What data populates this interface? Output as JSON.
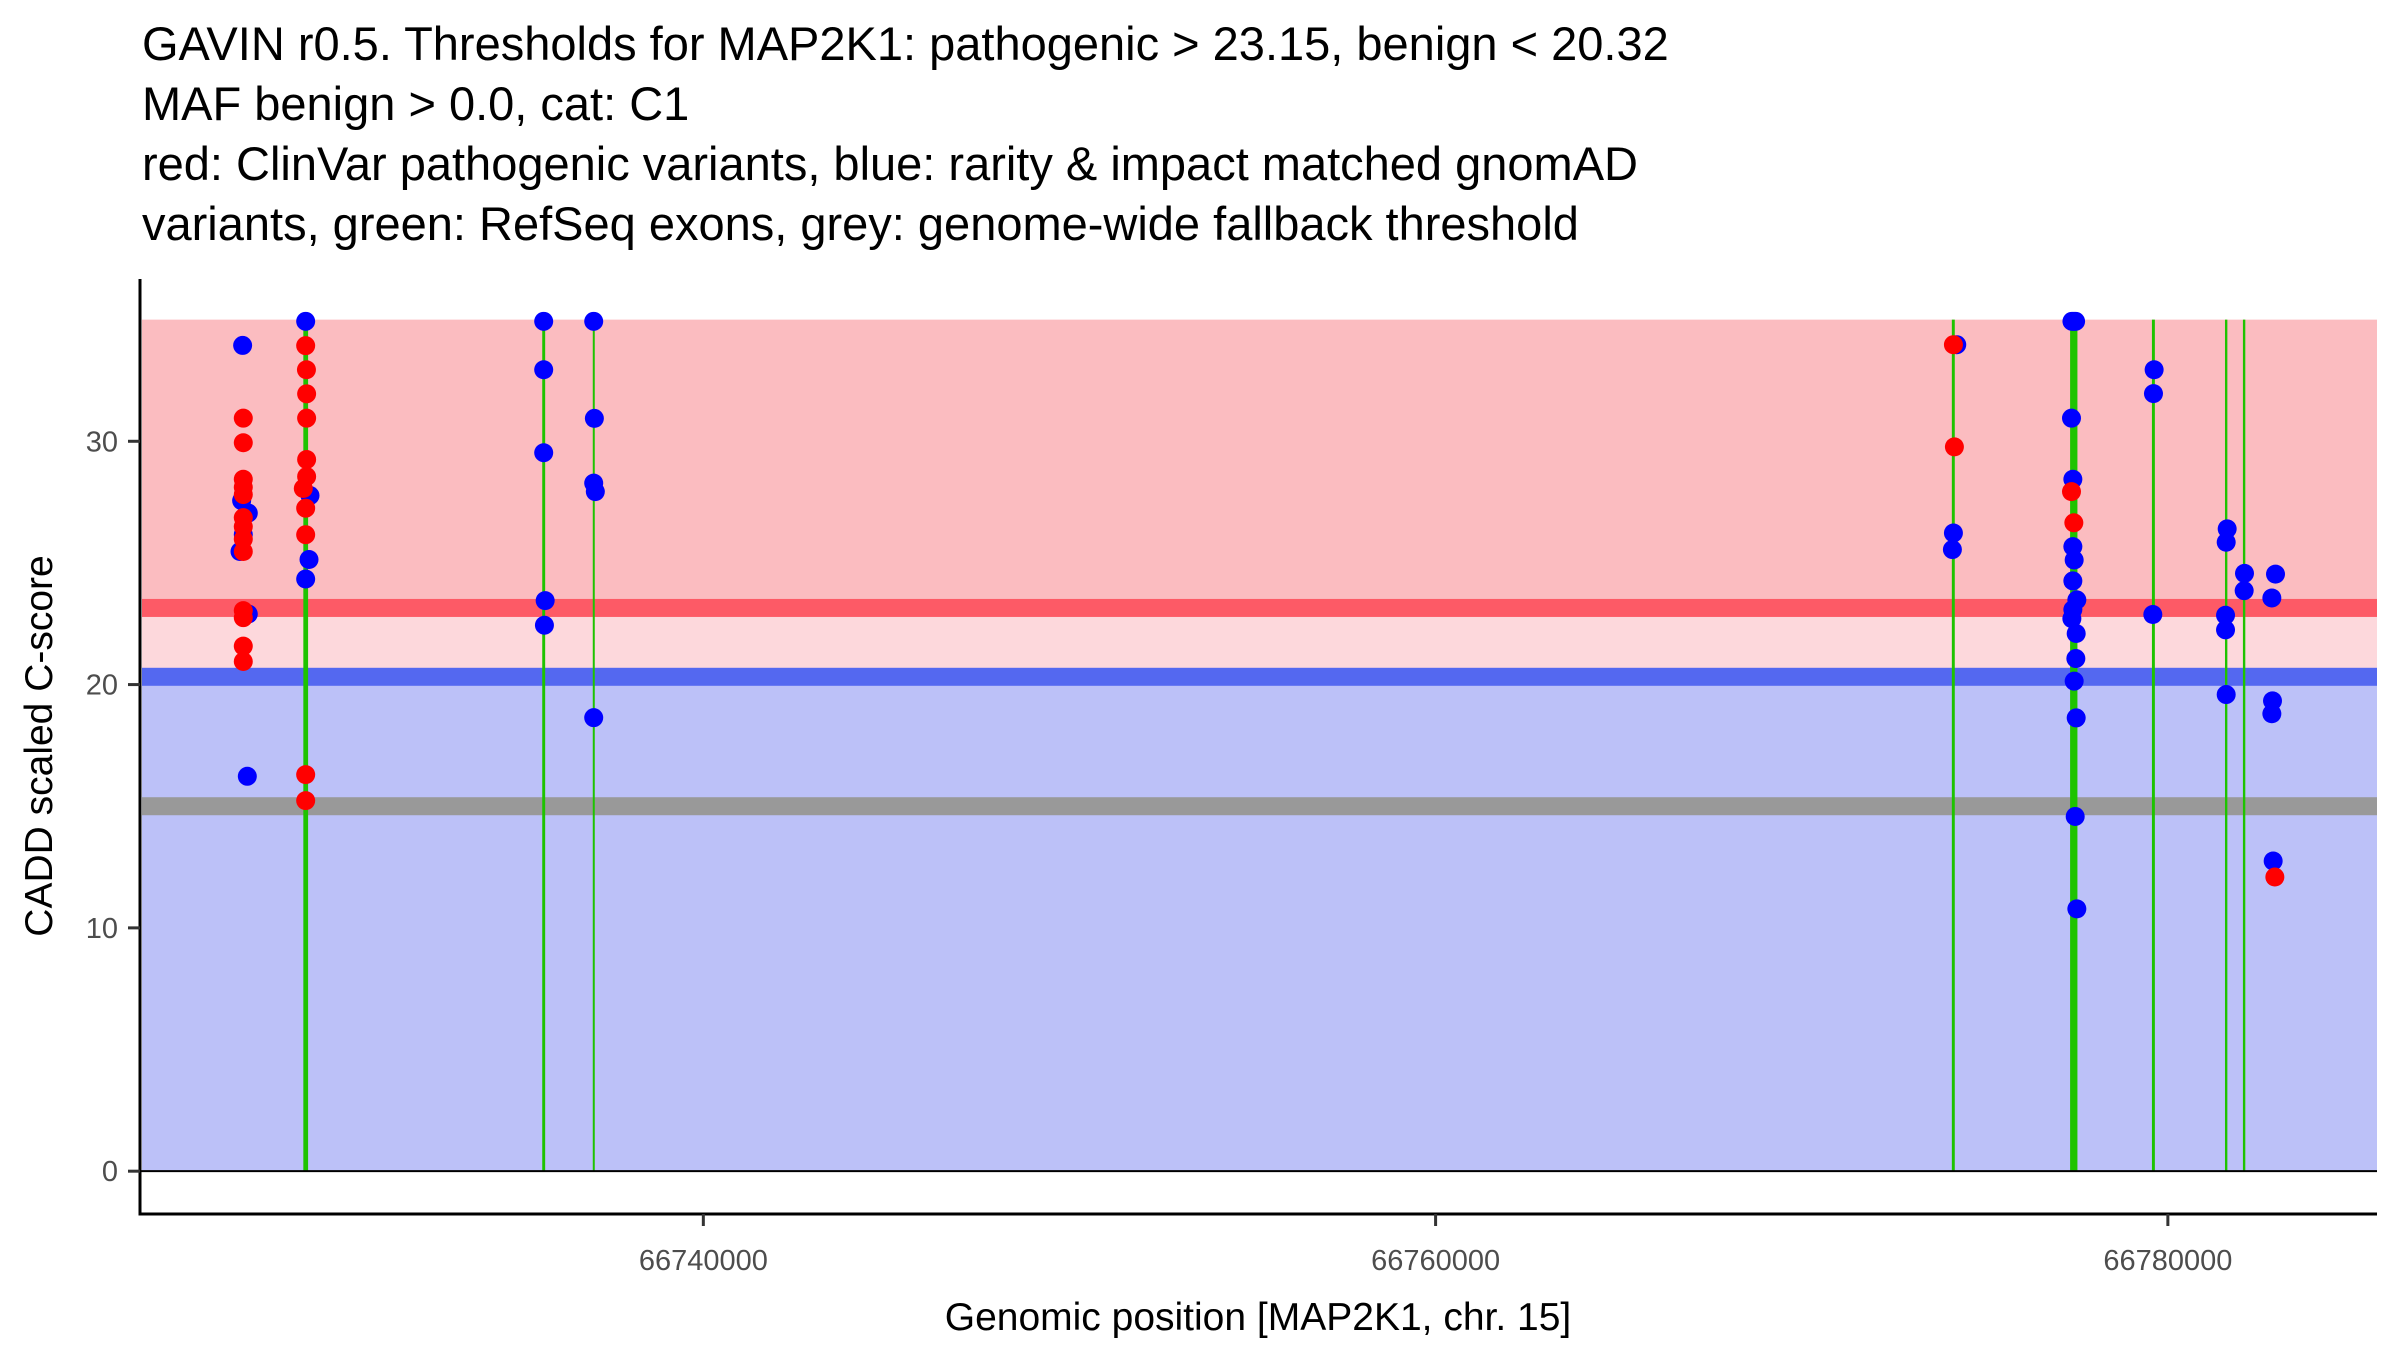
{
  "chart_data": {
    "type": "scatter",
    "title_lines": [
      "GAVIN r0.5. Thresholds for MAP2K1: pathogenic > 23.15, benign < 20.32",
      "MAF benign > 0.0, cat: C1",
      "red: ClinVar pathogenic variants, blue: rarity & impact matched gnomAD",
      "variants, green: RefSeq exons, grey: genome-wide fallback threshold"
    ],
    "xlabel": "Genomic position [MAP2K1, chr. 15]",
    "ylabel": "CADD scaled C-score",
    "xlim": [
      66724614,
      66785712
    ],
    "ylim": [
      -1.76,
      36.67
    ],
    "x_ticks": [
      66740000,
      66760000,
      66780000
    ],
    "x_tick_labels": [
      "66740000",
      "66760000",
      "66780000"
    ],
    "y_ticks": [
      0,
      10,
      20,
      30
    ],
    "y_tick_labels": [
      "0",
      "10",
      "20",
      "30"
    ],
    "grid": false,
    "thresholds": {
      "pathogenic": 23.15,
      "benign": 20.32,
      "fallback": 15,
      "max_score": 35,
      "band_half_width": 0.37
    },
    "colors": {
      "pathogenic_region": "#fbbcc0",
      "pathogenic_line": "#fd5a66",
      "gap_region": "#fdd8dc",
      "benign_line": "#5468f0",
      "benign_region": "#bcc1f8",
      "fallback_line": "#999999",
      "exon": "#1ec300",
      "pathogenic_point": "#ff0000",
      "benign_point": "#0000ff",
      "axis": "#000000"
    },
    "exons": [
      [
        66729075,
        66729205
      ],
      [
        66735600,
        66735680
      ],
      [
        66736995,
        66737020
      ],
      [
        66774100,
        66774180
      ],
      [
        66777330,
        66777530
      ],
      [
        66779565,
        66779645
      ],
      [
        66781560,
        66781625
      ],
      [
        66782050,
        66782115
      ]
    ],
    "series": [
      {
        "name": "gnomAD matched variants",
        "color_key": "benign_point",
        "points": [
          [
            66727417,
            33.94
          ],
          [
            66727390,
            27.56
          ],
          [
            66727572,
            27.05
          ],
          [
            66727435,
            26.17
          ],
          [
            66727345,
            25.47
          ],
          [
            66727572,
            22.9
          ],
          [
            66727545,
            16.23
          ],
          [
            66729139,
            34.93
          ],
          [
            66729257,
            27.77
          ],
          [
            66729230,
            25.14
          ],
          [
            66729139,
            24.34
          ],
          [
            66735640,
            34.93
          ],
          [
            66735640,
            32.94
          ],
          [
            66735640,
            29.53
          ],
          [
            66735680,
            23.45
          ],
          [
            66735660,
            22.44
          ],
          [
            66737006,
            34.93
          ],
          [
            66737024,
            30.94
          ],
          [
            66737006,
            28.28
          ],
          [
            66737050,
            27.93
          ],
          [
            66737006,
            18.64
          ],
          [
            66774234,
            33.97
          ],
          [
            66774143,
            26.23
          ],
          [
            66774115,
            25.55
          ],
          [
            66777380,
            34.93
          ],
          [
            66777432,
            34.93
          ],
          [
            66777480,
            34.93
          ],
          [
            66777368,
            30.95
          ],
          [
            66777405,
            28.44
          ],
          [
            66777405,
            25.67
          ],
          [
            66777441,
            25.12
          ],
          [
            66777405,
            24.26
          ],
          [
            66777514,
            23.48
          ],
          [
            66777405,
            23.08
          ],
          [
            66777378,
            22.71
          ],
          [
            66777496,
            22.1
          ],
          [
            66777487,
            21.07
          ],
          [
            66777441,
            20.14
          ],
          [
            66777496,
            18.63
          ],
          [
            66777469,
            14.58
          ],
          [
            66777514,
            10.78
          ],
          [
            66779625,
            32.94
          ],
          [
            66779607,
            31.96
          ],
          [
            66779589,
            22.88
          ],
          [
            66781620,
            26.4
          ],
          [
            66781593,
            25.85
          ],
          [
            66781575,
            22.85
          ],
          [
            66781575,
            22.25
          ],
          [
            66781593,
            19.59
          ],
          [
            66782093,
            24.57
          ],
          [
            66782084,
            23.86
          ],
          [
            66782940,
            24.54
          ],
          [
            66782840,
            23.56
          ],
          [
            66782858,
            19.33
          ],
          [
            66782840,
            18.8
          ],
          [
            66782876,
            12.75
          ]
        ]
      },
      {
        "name": "ClinVar pathogenic variants",
        "color_key": "pathogenic_point",
        "points": [
          [
            66727435,
            30.95
          ],
          [
            66727435,
            29.94
          ],
          [
            66727435,
            28.44
          ],
          [
            66727435,
            28.11
          ],
          [
            66727435,
            27.81
          ],
          [
            66727435,
            26.86
          ],
          [
            66727435,
            26.49
          ],
          [
            66727435,
            25.98
          ],
          [
            66727435,
            25.47
          ],
          [
            66727435,
            23.04
          ],
          [
            66727435,
            22.75
          ],
          [
            66727435,
            21.58
          ],
          [
            66727435,
            20.95
          ],
          [
            66729139,
            33.93
          ],
          [
            66729160,
            32.94
          ],
          [
            66729165,
            31.95
          ],
          [
            66729165,
            30.95
          ],
          [
            66729165,
            29.25
          ],
          [
            66729165,
            28.55
          ],
          [
            66729074,
            28.06
          ],
          [
            66729139,
            27.25
          ],
          [
            66729139,
            26.16
          ],
          [
            66729139,
            16.3
          ],
          [
            66729139,
            15.23
          ],
          [
            66774143,
            33.97
          ],
          [
            66774170,
            29.77
          ],
          [
            66777368,
            27.93
          ],
          [
            66777432,
            26.65
          ],
          [
            66782922,
            12.09
          ]
        ]
      }
    ]
  }
}
